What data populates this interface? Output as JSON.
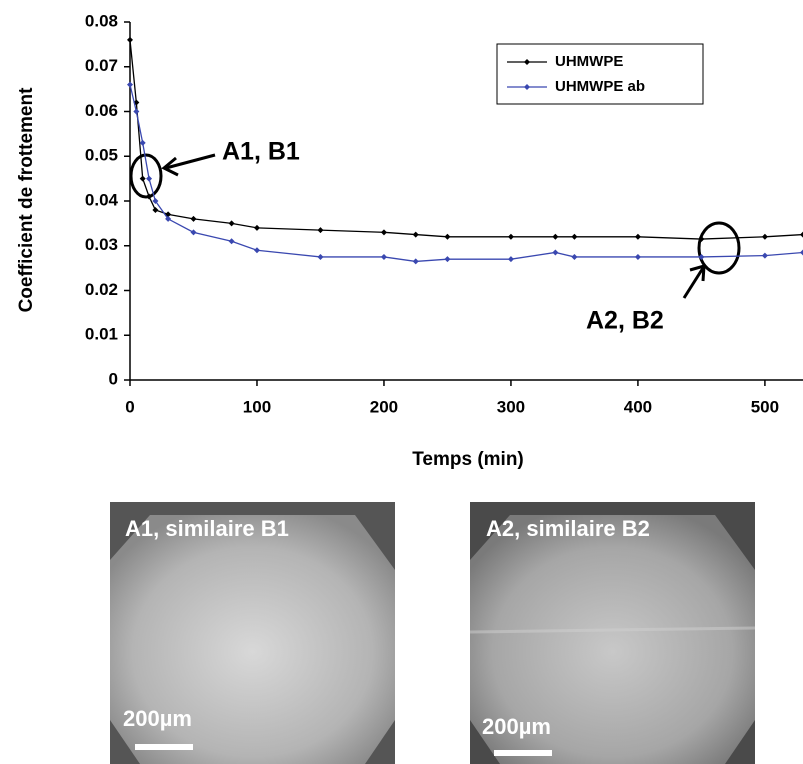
{
  "chart_data": {
    "type": "line",
    "ylabel": "Coefficient de frottement",
    "xlabel": "Temps (min)",
    "x": [
      0,
      5,
      10,
      15,
      20,
      30,
      50,
      80,
      100,
      150,
      200,
      225,
      250,
      300,
      335,
      350,
      400,
      450,
      500,
      530
    ],
    "series": [
      {
        "name": "UHMWPE",
        "color": "#000000",
        "values": [
          0.076,
          0.062,
          0.045,
          0.041,
          0.038,
          0.037,
          0.036,
          0.035,
          0.034,
          0.0335,
          0.033,
          0.0325,
          0.032,
          0.032,
          0.032,
          0.032,
          0.032,
          0.0315,
          0.032,
          0.0325
        ]
      },
      {
        "name": "UHMWPE ab",
        "color": "#3a48b0",
        "values": [
          0.066,
          0.06,
          0.053,
          0.045,
          0.04,
          0.036,
          0.033,
          0.031,
          0.029,
          0.0275,
          0.0275,
          0.0265,
          0.027,
          0.027,
          0.0285,
          0.0275,
          0.0275,
          0.0275,
          0.0278,
          0.0285
        ]
      }
    ],
    "xlim": [
      0,
      530
    ],
    "xticks": [
      0,
      100,
      200,
      300,
      400,
      500
    ],
    "ylim": [
      0,
      0.08
    ],
    "yticks": [
      0,
      0.01,
      0.02,
      0.03,
      0.04,
      0.05,
      0.06,
      0.07,
      0.08
    ],
    "legend": "upper right",
    "annotations": [
      {
        "text": "A1, B1"
      },
      {
        "text": "A2, B2"
      }
    ]
  },
  "images": [
    {
      "label": "A1, similaire B1",
      "scale": "200µm"
    },
    {
      "label": "A2, similaire B2",
      "scale": "200µm"
    }
  ]
}
